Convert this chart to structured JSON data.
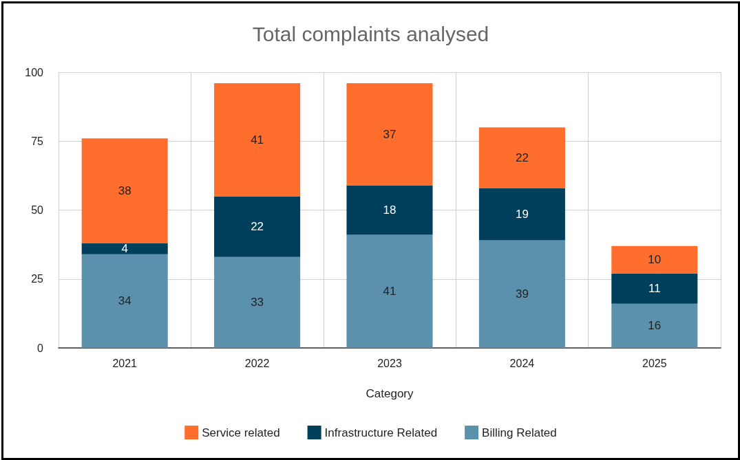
{
  "chart_data": {
    "type": "bar",
    "title": "Total complaints analysed",
    "xlabel": "Category",
    "categories": [
      "2021",
      "2022",
      "2023",
      "2024",
      "2025"
    ],
    "series": [
      {
        "name": "Billing Related",
        "color": "#5b91ad",
        "values": [
          34,
          33,
          41,
          39,
          16
        ]
      },
      {
        "name": "Infrastructure Related",
        "color": "#003f5c",
        "values": [
          4,
          22,
          18,
          19,
          11
        ]
      },
      {
        "name": "Service related",
        "color": "#ff6e2c",
        "values": [
          38,
          41,
          37,
          22,
          10
        ]
      }
    ],
    "stacked": true,
    "ylim": [
      0,
      100
    ],
    "yticks": [
      0,
      25,
      50,
      75,
      100
    ],
    "grid": true,
    "legend": "bottom",
    "data_labels": true
  }
}
